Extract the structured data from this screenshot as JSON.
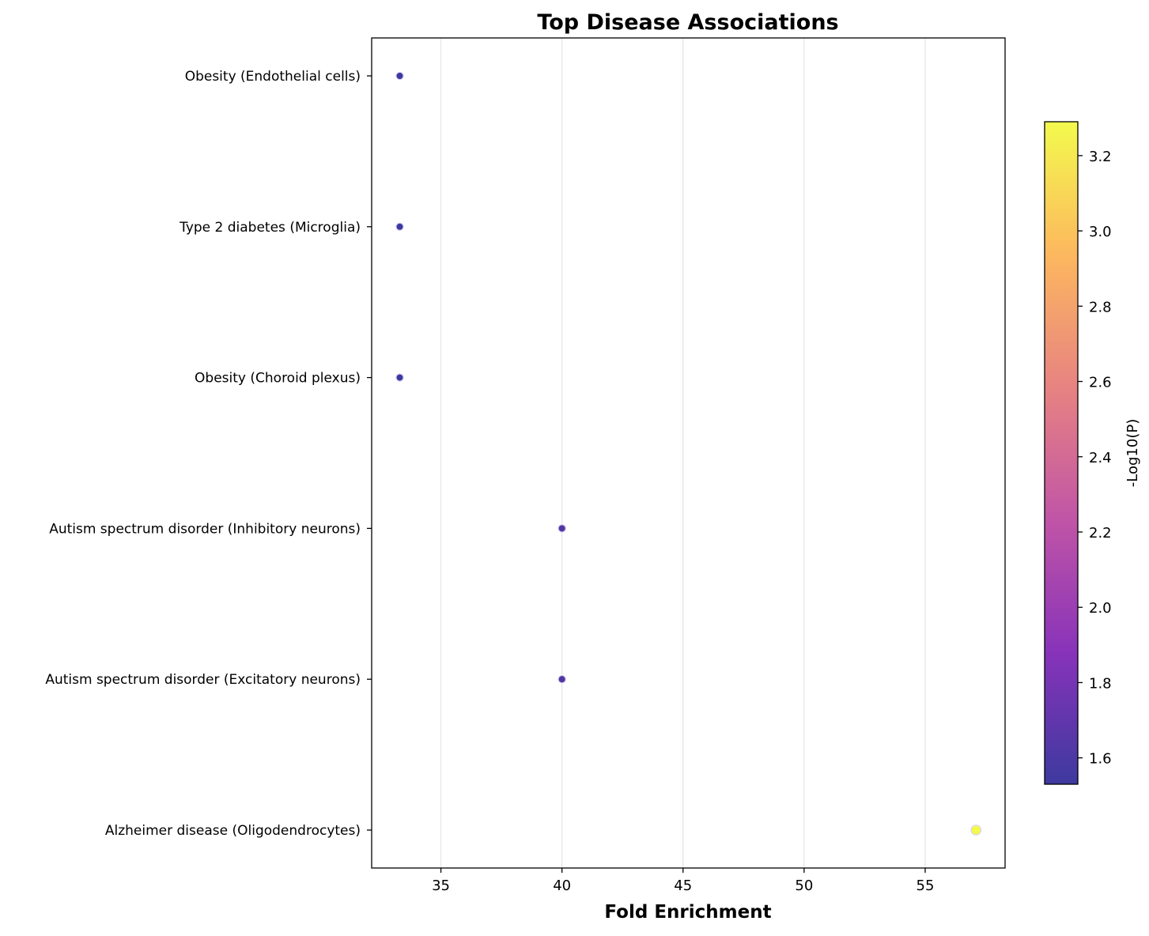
{
  "chart_data": {
    "type": "scatter",
    "title": "Top Disease Associations",
    "xlabel": "Fold Enrichment",
    "ylabel": "",
    "xlim": [
      32.14,
      58.3
    ],
    "xticks": [
      35,
      40,
      45,
      50,
      55
    ],
    "grid": "vertical",
    "categories": [
      "Obesity (Endothelial cells)",
      "Type 2 diabetes (Microglia)",
      "Obesity (Choroid plexus)",
      "Autism spectrum disorder (Inhibitory neurons)",
      "Autism spectrum disorder (Excitatory neurons)",
      "Alzheimer disease (Oligodendrocytes)"
    ],
    "points": [
      {
        "category": "Obesity (Endothelial cells)",
        "x": 33.3,
        "neg_log10_p": 1.53
      },
      {
        "category": "Type 2 diabetes (Microglia)",
        "x": 33.3,
        "neg_log10_p": 1.53
      },
      {
        "category": "Obesity (Choroid plexus)",
        "x": 33.3,
        "neg_log10_p": 1.53
      },
      {
        "category": "Autism spectrum disorder (Inhibitory neurons)",
        "x": 40.0,
        "neg_log10_p": 1.62
      },
      {
        "category": "Autism spectrum disorder (Excitatory neurons)",
        "x": 40.0,
        "neg_log10_p": 1.62
      },
      {
        "category": "Alzheimer disease (Oligodendrocytes)",
        "x": 57.1,
        "neg_log10_p": 3.29
      }
    ],
    "colorbar": {
      "label": "-Log10(P)",
      "range": [
        1.53,
        3.29
      ],
      "ticks": [
        "1.6",
        "1.8",
        "2.0",
        "2.2",
        "2.4",
        "2.6",
        "2.8",
        "3.0",
        "3.2"
      ],
      "colormap": "plasma",
      "colormap_stops": [
        "#0d0887",
        "#6a00a8",
        "#b12a90",
        "#e16462",
        "#fca636",
        "#f0f921"
      ],
      "alpha": 0.8
    }
  }
}
